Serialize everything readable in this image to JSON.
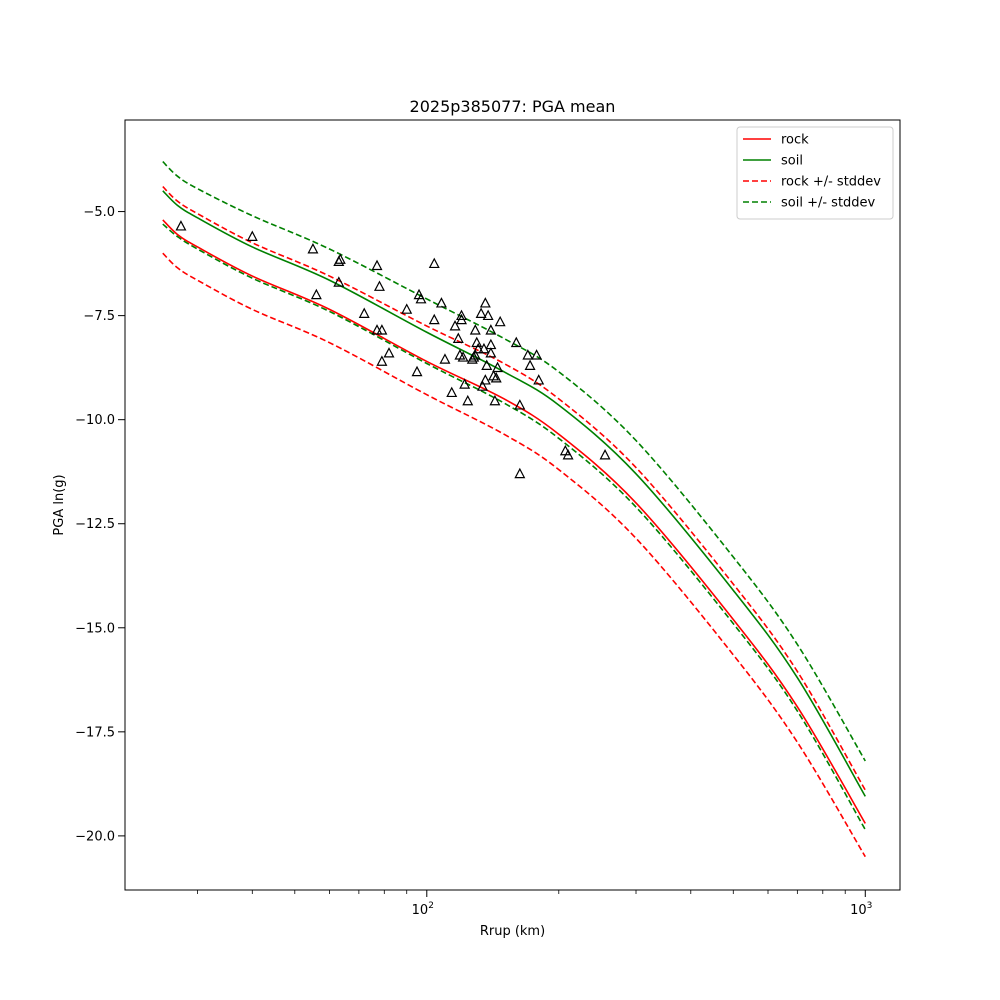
{
  "chart_data": {
    "type": "line",
    "title": "2025p385077: PGA mean",
    "xlabel": "Rrup (km)",
    "ylabel": "PGA ln(g)",
    "xscale": "log",
    "xlim": [
      20.5,
      1200
    ],
    "ylim": [
      -21.3,
      -2.8
    ],
    "x_ticks": [
      100,
      1000
    ],
    "x_tick_labels": [
      "10^2",
      "10^3"
    ],
    "y_ticks": [
      -20.0,
      -17.5,
      -15.0,
      -12.5,
      -10.0,
      -7.5,
      -5.0
    ],
    "y_tick_labels": [
      "−20.0",
      "−17.5",
      "−15.0",
      "−12.5",
      "−10.0",
      "−7.5",
      "−5.0"
    ],
    "grid": false,
    "legend_position": "top-right",
    "x": [
      25,
      27,
      30,
      40,
      60,
      100,
      150,
      200,
      300,
      500,
      700,
      1000
    ],
    "series": [
      {
        "name": "rock",
        "color": "#ff0000",
        "dashed": false,
        "values": [
          -5.2,
          -5.55,
          -5.85,
          -6.55,
          -7.35,
          -8.6,
          -9.5,
          -10.35,
          -12.0,
          -14.8,
          -16.9,
          -19.7
        ]
      },
      {
        "name": "soil",
        "color": "#008000",
        "dashed": false,
        "values": [
          -4.5,
          -4.85,
          -5.15,
          -5.85,
          -6.65,
          -7.9,
          -8.85,
          -9.65,
          -11.3,
          -14.1,
          -16.2,
          -19.05
        ]
      },
      {
        "name": "rock +/- stddev",
        "color": "#ff0000",
        "dashed": true,
        "values": [
          -4.4,
          -4.75,
          -5.05,
          -5.75,
          -6.55,
          -7.75,
          -8.65,
          -9.5,
          -11.15,
          -13.95,
          -16.05,
          -18.9
        ]
      },
      {
        "name": "rock +/- stddev",
        "color": "#ff0000",
        "dashed": true,
        "legend": false,
        "values": [
          -6.0,
          -6.35,
          -6.65,
          -7.35,
          -8.15,
          -9.4,
          -10.35,
          -11.2,
          -12.85,
          -15.65,
          -17.75,
          -20.5
        ]
      },
      {
        "name": "soil +/- stddev",
        "color": "#008000",
        "dashed": true,
        "values": [
          -3.8,
          -4.15,
          -4.45,
          -5.1,
          -5.9,
          -7.1,
          -8.05,
          -8.85,
          -10.5,
          -13.3,
          -15.4,
          -18.2
        ]
      },
      {
        "name": "soil +/- stddev",
        "color": "#008000",
        "dashed": true,
        "legend": false,
        "values": [
          -5.3,
          -5.6,
          -5.9,
          -6.6,
          -7.4,
          -8.65,
          -9.6,
          -10.45,
          -12.1,
          -14.9,
          -17.0,
          -19.85
        ]
      }
    ],
    "observations": {
      "marker": "triangle",
      "color": "#000000",
      "points": [
        [
          27.5,
          -5.35
        ],
        [
          40,
          -5.6
        ],
        [
          55,
          -5.9
        ],
        [
          56,
          -7.0
        ],
        [
          63,
          -6.2
        ],
        [
          63.5,
          -6.15
        ],
        [
          63,
          -6.7
        ],
        [
          72,
          -7.45
        ],
        [
          77,
          -6.3
        ],
        [
          77,
          -7.85
        ],
        [
          78,
          -6.8
        ],
        [
          79,
          -7.85
        ],
        [
          79,
          -8.6
        ],
        [
          82,
          -8.4
        ],
        [
          90,
          -7.35
        ],
        [
          95,
          -8.85
        ],
        [
          96,
          -7.0
        ],
        [
          97,
          -7.1
        ],
        [
          104,
          -6.25
        ],
        [
          104,
          -7.6
        ],
        [
          108,
          -7.2
        ],
        [
          110,
          -8.55
        ],
        [
          114,
          -9.35
        ],
        [
          116,
          -7.75
        ],
        [
          118,
          -8.05
        ],
        [
          119,
          -8.45
        ],
        [
          120,
          -7.5
        ],
        [
          120,
          -7.6
        ],
        [
          121,
          -8.5
        ],
        [
          122,
          -9.15
        ],
        [
          124,
          -9.55
        ],
        [
          127,
          -8.55
        ],
        [
          128,
          -8.5
        ],
        [
          129,
          -7.85
        ],
        [
          129,
          -8.45
        ],
        [
          130,
          -8.15
        ],
        [
          131,
          -8.3
        ],
        [
          133,
          -7.45
        ],
        [
          134,
          -9.2
        ],
        [
          135,
          -8.3
        ],
        [
          136,
          -7.2
        ],
        [
          136,
          -9.05
        ],
        [
          137,
          -8.7
        ],
        [
          138,
          -7.5
        ],
        [
          140,
          -8.2
        ],
        [
          140,
          -7.85
        ],
        [
          140,
          -8.4
        ],
        [
          142,
          -8.95
        ],
        [
          143,
          -9.55
        ],
        [
          144,
          -9.0
        ],
        [
          145,
          -8.75
        ],
        [
          147,
          -7.65
        ],
        [
          160,
          -8.15
        ],
        [
          163,
          -9.65
        ],
        [
          163,
          -11.3
        ],
        [
          170,
          -8.45
        ],
        [
          172,
          -8.7
        ],
        [
          178,
          -8.45
        ],
        [
          180,
          -9.05
        ],
        [
          207,
          -10.75
        ],
        [
          210,
          -10.85
        ],
        [
          255,
          -10.85
        ]
      ]
    }
  }
}
